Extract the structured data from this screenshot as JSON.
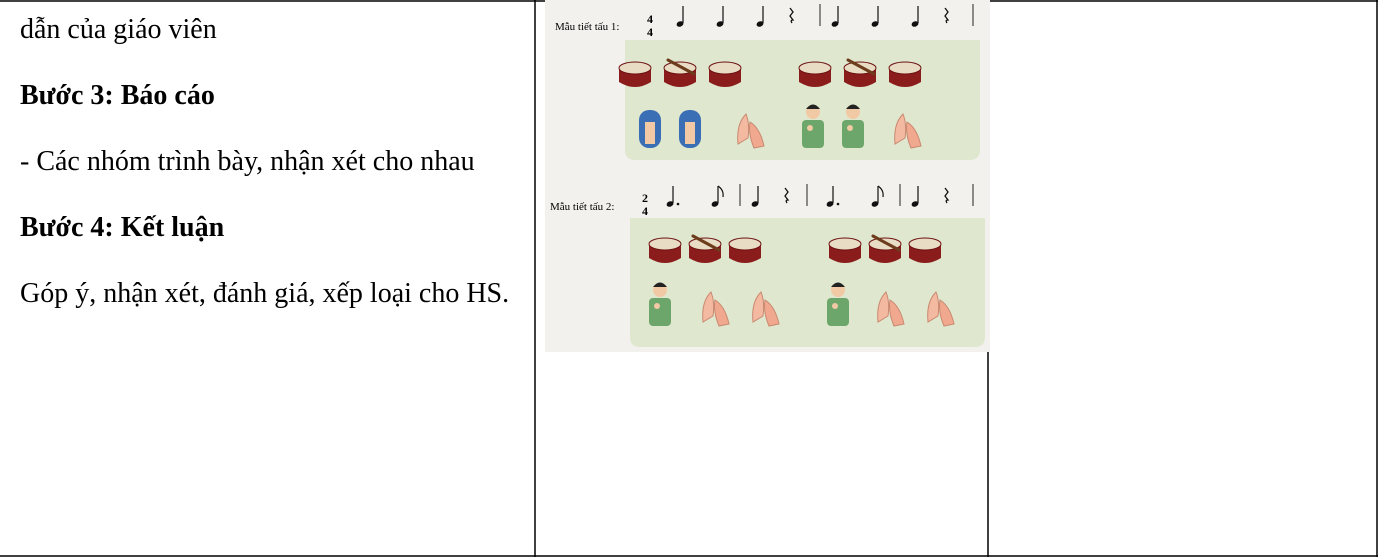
{
  "left_column": {
    "paragraphs": [
      {
        "text": "dẫn của giáo viên",
        "bold": false
      },
      {
        "text": "Bước 3: Báo cáo",
        "bold": true
      },
      {
        "text": "- Các nhóm trình bày, nhận xét cho nhau",
        "bold": false
      },
      {
        "text": "Bước 4: Kết luận",
        "bold": true
      },
      {
        "text": "Góp ý, nhận xét, đánh giá, xếp loại cho HS.",
        "bold": false
      }
    ]
  },
  "figure": {
    "patterns": [
      {
        "label": "Mẫu tiết tấu 1:",
        "time_signature": [
          4,
          4
        ]
      },
      {
        "label": "Mẫu tiết tấu 2:",
        "time_signature": [
          2,
          4
        ]
      }
    ]
  }
}
